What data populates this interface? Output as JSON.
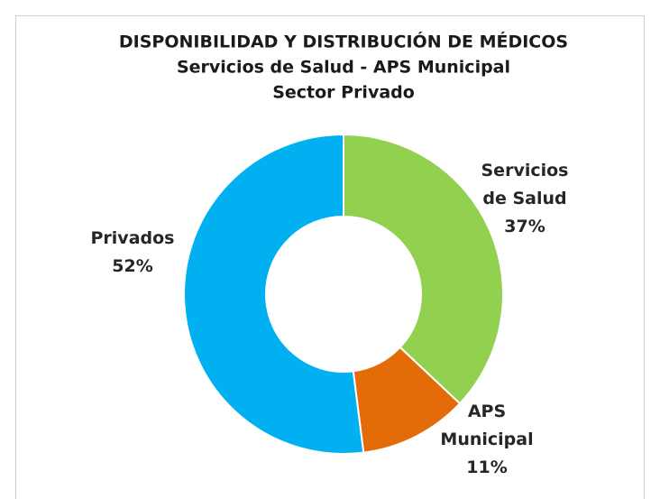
{
  "chart_data": {
    "type": "donut",
    "title": [
      "DISPONIBILIDAD Y DISTRIBUCIÓN DE MÉDICOS",
      "Servicios de Salud - APS Municipal",
      "Sector Privado"
    ],
    "categories": [
      "Servicios de Salud",
      "APS Municipal",
      "Privados"
    ],
    "values": [
      37,
      11,
      52
    ],
    "value_labels": [
      "37%",
      "11%",
      "52%"
    ],
    "colors": [
      "#92d050",
      "#e36c09",
      "#00b0f0"
    ]
  }
}
